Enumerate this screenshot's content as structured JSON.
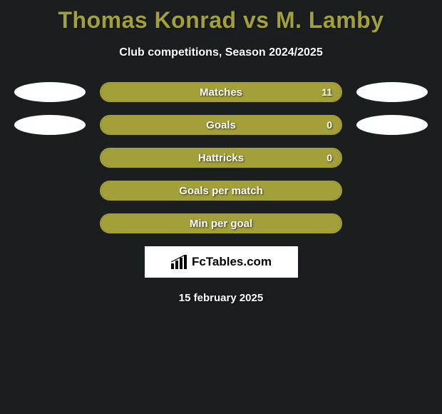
{
  "title": "Thomas Konrad vs M. Lamby",
  "subtitle": "Club competitions, Season 2024/2025",
  "colors": {
    "accent": "#a3a03a",
    "background": "#1a1e1f",
    "text": "#ffffff",
    "brand_bg": "#ffffff",
    "brand_fg": "#000000"
  },
  "stats": [
    {
      "label": "Matches",
      "value": "11",
      "fill_pct": 100,
      "show_left_ellipse": true,
      "show_right_ellipse": true
    },
    {
      "label": "Goals",
      "value": "0",
      "fill_pct": 100,
      "show_left_ellipse": true,
      "show_right_ellipse": true
    },
    {
      "label": "Hattricks",
      "value": "0",
      "fill_pct": 100,
      "show_left_ellipse": false,
      "show_right_ellipse": false
    },
    {
      "label": "Goals per match",
      "value": "",
      "fill_pct": 100,
      "show_left_ellipse": false,
      "show_right_ellipse": false
    },
    {
      "label": "Min per goal",
      "value": "",
      "fill_pct": 100,
      "show_left_ellipse": false,
      "show_right_ellipse": false
    }
  ],
  "brand": {
    "text": "FcTables.com",
    "icon_name": "bar-chart-icon"
  },
  "date": "15 february 2025"
}
